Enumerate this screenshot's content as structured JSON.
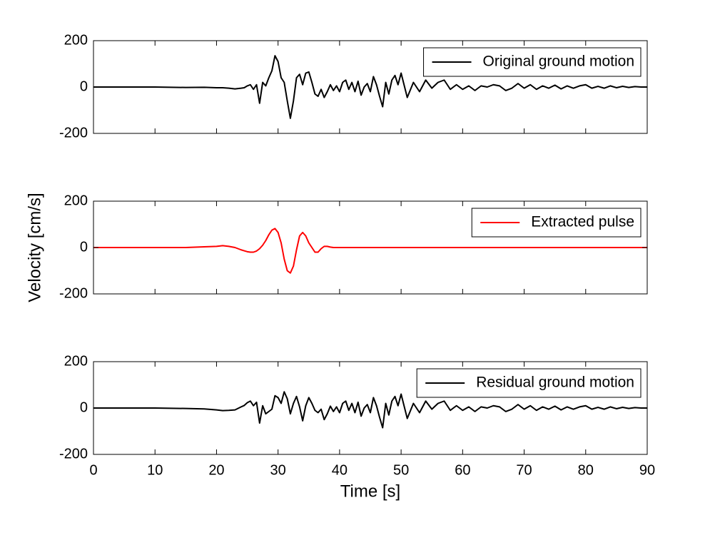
{
  "chart_data": [
    {
      "type": "line",
      "ylim": [
        -200,
        200
      ],
      "yticks": [
        -200,
        0,
        200
      ],
      "xlim": [
        0,
        90
      ],
      "legend": "upper right",
      "x": [
        0,
        5,
        10,
        15,
        18,
        20,
        21,
        22,
        23,
        24,
        24.5,
        25,
        25.5,
        26,
        26.5,
        27,
        27.5,
        28,
        28.5,
        29,
        29.5,
        30,
        30.5,
        31,
        31.5,
        32,
        32.5,
        33,
        33.5,
        34,
        34.5,
        35,
        35.5,
        36,
        36.5,
        37,
        37.5,
        38,
        38.5,
        39,
        39.5,
        40,
        40.5,
        41,
        41.5,
        42,
        42.5,
        43,
        43.5,
        44,
        44.5,
        45,
        45.5,
        46,
        46.5,
        47,
        47.5,
        48,
        48.5,
        49,
        49.5,
        50,
        51,
        52,
        53,
        54,
        55,
        56,
        57,
        58,
        59,
        60,
        61,
        62,
        63,
        64,
        65,
        66,
        67,
        68,
        69,
        70,
        71,
        72,
        73,
        74,
        75,
        76,
        77,
        78,
        79,
        80,
        81,
        82,
        83,
        84,
        85,
        86,
        87,
        88,
        89,
        90
      ],
      "series": [
        {
          "name": "Original ground motion",
          "color": "#000000",
          "values": [
            0,
            0,
            0,
            -2,
            -1,
            -3,
            -3,
            -5,
            -8,
            -5,
            -3,
            5,
            10,
            -10,
            10,
            -70,
            20,
            5,
            40,
            70,
            135,
            110,
            40,
            20,
            -60,
            -135,
            -60,
            40,
            55,
            10,
            60,
            65,
            20,
            -30,
            -40,
            -10,
            -45,
            -20,
            10,
            -15,
            5,
            -20,
            20,
            30,
            -10,
            20,
            -20,
            25,
            -35,
            0,
            15,
            -20,
            45,
            10,
            -40,
            -85,
            20,
            -30,
            30,
            50,
            10,
            60,
            -45,
            20,
            -20,
            30,
            -5,
            20,
            30,
            -10,
            10,
            -10,
            5,
            -15,
            5,
            0,
            10,
            5,
            -15,
            -5,
            15,
            -5,
            10,
            -10,
            5,
            -5,
            8,
            -8,
            5,
            -5,
            5,
            10,
            -5,
            3,
            -5,
            5,
            -3,
            3,
            -2,
            2,
            0,
            0
          ]
        }
      ]
    },
    {
      "type": "line",
      "ylim": [
        -200,
        200
      ],
      "yticks": [
        -200,
        0,
        200
      ],
      "xlim": [
        0,
        90
      ],
      "legend": "upper right",
      "ylabel": "Velocity [cm/s]",
      "x": [
        0,
        5,
        10,
        15,
        18,
        20,
        21,
        22,
        23,
        24,
        24.5,
        25,
        25.5,
        26,
        26.5,
        27,
        27.5,
        28,
        28.5,
        29,
        29.5,
        30,
        30.5,
        31,
        31.5,
        32,
        32.5,
        33,
        33.5,
        34,
        34.5,
        35,
        35.5,
        36,
        36.5,
        37,
        37.5,
        38,
        38.5,
        39,
        39.5,
        40,
        40.5,
        41,
        41.5,
        42,
        42.5,
        43,
        43.5,
        44,
        44.5,
        45,
        45.5,
        46,
        46.5,
        47,
        47.5,
        48,
        48.5,
        49,
        49.5,
        50,
        51,
        52,
        53,
        54,
        55,
        56,
        57,
        58,
        59,
        60,
        61,
        62,
        63,
        64,
        65,
        66,
        67,
        68,
        69,
        70,
        71,
        72,
        73,
        74,
        75,
        76,
        77,
        78,
        79,
        80,
        81,
        82,
        83,
        84,
        85,
        86,
        87,
        88,
        89,
        90
      ],
      "series": [
        {
          "name": "Extracted pulse",
          "color": "#ff0000",
          "values": [
            0,
            0,
            0,
            0,
            3,
            5,
            8,
            5,
            0,
            -10,
            -14,
            -18,
            -20,
            -20,
            -15,
            -5,
            10,
            30,
            55,
            75,
            82,
            65,
            20,
            -50,
            -100,
            -110,
            -80,
            -10,
            50,
            65,
            50,
            20,
            0,
            -20,
            -20,
            -5,
            5,
            5,
            2,
            0,
            0,
            0,
            0,
            0,
            0,
            0,
            0,
            0,
            0,
            0,
            0,
            0,
            0,
            0,
            0,
            0,
            0,
            0,
            0,
            0,
            0,
            0,
            0,
            0,
            0,
            0,
            0,
            0,
            0,
            0,
            0,
            0,
            0,
            0,
            0,
            0,
            0,
            0,
            0,
            0,
            0,
            0,
            0,
            0,
            0,
            0,
            0,
            0,
            0,
            0,
            0,
            0,
            0,
            0,
            0,
            0,
            0,
            0,
            0,
            0,
            0,
            0
          ]
        }
      ]
    },
    {
      "type": "line",
      "ylim": [
        -200,
        200
      ],
      "yticks": [
        -200,
        0,
        200
      ],
      "xlim": [
        0,
        90
      ],
      "xticks": [
        0,
        10,
        20,
        30,
        40,
        50,
        60,
        70,
        80,
        90
      ],
      "legend": "upper right",
      "xlabel": "Time [s]",
      "x": [
        0,
        5,
        10,
        15,
        18,
        20,
        21,
        22,
        23,
        24,
        24.5,
        25,
        25.5,
        26,
        26.5,
        27,
        27.5,
        28,
        28.5,
        29,
        29.5,
        30,
        30.5,
        31,
        31.5,
        32,
        32.5,
        33,
        33.5,
        34,
        34.5,
        35,
        35.5,
        36,
        36.5,
        37,
        37.5,
        38,
        38.5,
        39,
        39.5,
        40,
        40.5,
        41,
        41.5,
        42,
        42.5,
        43,
        43.5,
        44,
        44.5,
        45,
        45.5,
        46,
        46.5,
        47,
        47.5,
        48,
        48.5,
        49,
        49.5,
        50,
        51,
        52,
        53,
        54,
        55,
        56,
        57,
        58,
        59,
        60,
        61,
        62,
        63,
        64,
        65,
        66,
        67,
        68,
        69,
        70,
        71,
        72,
        73,
        74,
        75,
        76,
        77,
        78,
        79,
        80,
        81,
        82,
        83,
        84,
        85,
        86,
        87,
        88,
        89,
        90
      ],
      "series": [
        {
          "name": "Residual ground motion",
          "color": "#000000",
          "values": [
            0,
            0,
            0,
            -2,
            -4,
            -8,
            -11,
            -10,
            -8,
            5,
            11,
            23,
            30,
            10,
            25,
            -65,
            10,
            -25,
            -15,
            -5,
            53,
            45,
            20,
            70,
            40,
            -25,
            20,
            50,
            5,
            -55,
            10,
            45,
            20,
            -10,
            -20,
            -5,
            -50,
            -25,
            8,
            -15,
            5,
            -20,
            20,
            30,
            -10,
            20,
            -20,
            25,
            -35,
            0,
            15,
            -20,
            45,
            10,
            -40,
            -85,
            20,
            -30,
            30,
            50,
            10,
            60,
            -45,
            20,
            -20,
            30,
            -5,
            20,
            30,
            -10,
            10,
            -10,
            5,
            -15,
            5,
            0,
            10,
            5,
            -15,
            -5,
            15,
            -5,
            10,
            -10,
            5,
            -5,
            8,
            -8,
            5,
            -5,
            5,
            10,
            -5,
            3,
            -5,
            5,
            -3,
            3,
            -2,
            2,
            0,
            0
          ]
        }
      ]
    }
  ]
}
